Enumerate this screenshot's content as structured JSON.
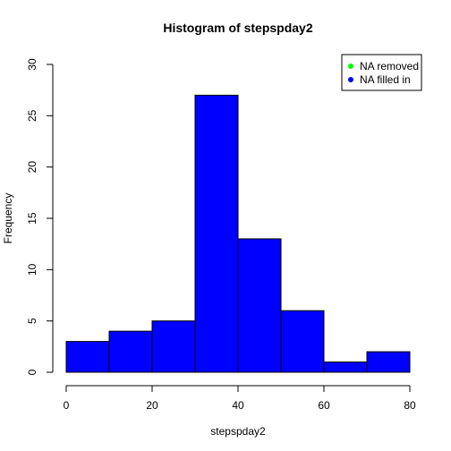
{
  "chart_data": {
    "type": "bar",
    "title": "Histogram of stepspday2",
    "xlabel": "stepspday2",
    "ylabel": "Frequency",
    "bins": [
      {
        "x0": 0,
        "x1": 10,
        "count": 3
      },
      {
        "x0": 10,
        "x1": 20,
        "count": 4
      },
      {
        "x0": 20,
        "x1": 30,
        "count": 5
      },
      {
        "x0": 30,
        "x1": 40,
        "count": 27
      },
      {
        "x0": 40,
        "x1": 50,
        "count": 13
      },
      {
        "x0": 50,
        "x1": 60,
        "count": 6
      },
      {
        "x0": 60,
        "x1": 70,
        "count": 1
      },
      {
        "x0": 70,
        "x1": 80,
        "count": 2
      }
    ],
    "xlim": [
      0,
      80
    ],
    "ylim": [
      0,
      30
    ],
    "xticks": [
      0,
      20,
      40,
      60,
      80
    ],
    "yticks": [
      0,
      5,
      10,
      15,
      20,
      25,
      30
    ],
    "bar_color": "#0000ff",
    "grid": false,
    "legend": {
      "placement": "top-right",
      "entries": [
        {
          "label": "NA removed",
          "color": "#00ff00"
        },
        {
          "label": "NA filled in",
          "color": "#0000ff"
        }
      ]
    }
  }
}
